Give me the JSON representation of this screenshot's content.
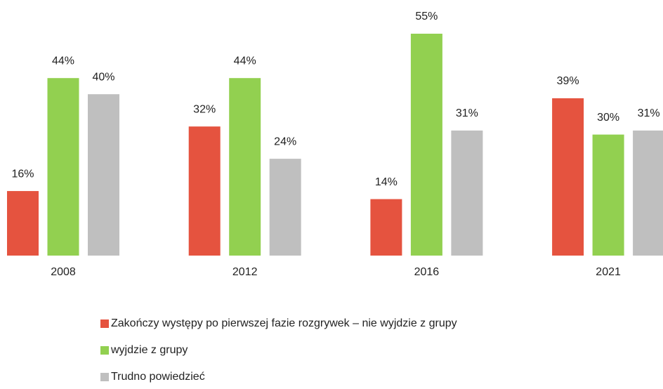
{
  "chart_data": {
    "type": "bar",
    "categories": [
      "2008",
      "2012",
      "2016",
      "2021"
    ],
    "series": [
      {
        "name": "Zakończy występy po pierwszej fazie rozgrywek – nie wyjdzie z grupy",
        "color": "#e5533f",
        "values": [
          16,
          32,
          14,
          39
        ],
        "value_labels": [
          "16%",
          "32%",
          "14%",
          "39%"
        ]
      },
      {
        "name": "wyjdzie z grupy",
        "color": "#92d050",
        "values": [
          44,
          44,
          55,
          30
        ],
        "value_labels": [
          "44%",
          "44%",
          "55%",
          "30%"
        ]
      },
      {
        "name": "Trudno powiedzieć",
        "color": "#bfbfbf",
        "values": [
          40,
          24,
          31,
          31
        ],
        "value_labels": [
          "40%",
          "24%",
          "31%",
          "31%"
        ]
      }
    ],
    "ylim": [
      0,
      55
    ]
  }
}
